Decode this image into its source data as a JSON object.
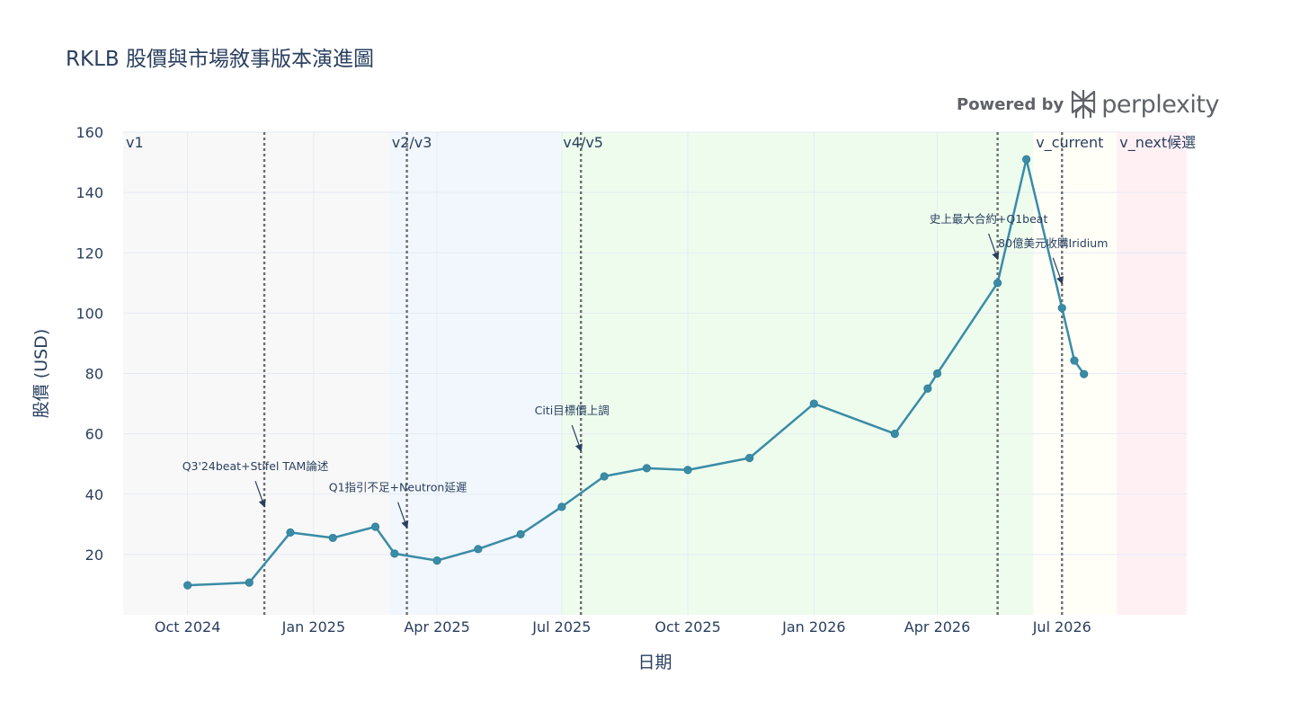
{
  "title": "RKLB 股價與市場敘事版本演進圖",
  "brand": {
    "powered": "Powered by",
    "name": "perplexity",
    "logo_icon": "perplexity-logo-icon"
  },
  "chart_data": {
    "type": "line",
    "title": "RKLB 股價與市場敘事版本演進圖",
    "xlabel": "日期",
    "ylabel": "股價 (USD)",
    "xlim": [
      "2024-08-15",
      "2026-09-30"
    ],
    "ylim": [
      0,
      160
    ],
    "x_tick_labels": [
      {
        "date": "2024-10-01",
        "label": "Oct 2024"
      },
      {
        "date": "2025-01-01",
        "label": "Jan 2025"
      },
      {
        "date": "2025-04-01",
        "label": "Apr 2025"
      },
      {
        "date": "2025-07-01",
        "label": "Jul 2025"
      },
      {
        "date": "2025-10-01",
        "label": "Oct 2025"
      },
      {
        "date": "2026-01-01",
        "label": "Jan 2026"
      },
      {
        "date": "2026-04-01",
        "label": "Apr 2026"
      },
      {
        "date": "2026-07-01",
        "label": "Jul 2026"
      }
    ],
    "y_ticks": [
      20,
      40,
      60,
      80,
      100,
      120,
      140,
      160
    ],
    "grid": true,
    "line_color": "#3a8ca6",
    "series": [
      {
        "points": [
          {
            "x": "2024-10-01",
            "y": 9.8
          },
          {
            "x": "2024-11-15",
            "y": 10.7
          },
          {
            "x": "2024-12-15",
            "y": 27.3
          },
          {
            "x": "2025-01-15",
            "y": 25.5
          },
          {
            "x": "2025-02-15",
            "y": 29.2
          },
          {
            "x": "2025-03-01",
            "y": 20.3
          },
          {
            "x": "2025-04-01",
            "y": 18.0
          },
          {
            "x": "2025-05-01",
            "y": 21.8
          },
          {
            "x": "2025-06-01",
            "y": 26.7
          },
          {
            "x": "2025-07-01",
            "y": 35.8
          },
          {
            "x": "2025-08-01",
            "y": 45.9
          },
          {
            "x": "2025-09-01",
            "y": 48.6
          },
          {
            "x": "2025-10-01",
            "y": 48.0
          },
          {
            "x": "2025-11-15",
            "y": 52.0
          },
          {
            "x": "2026-01-01",
            "y": 70.0
          },
          {
            "x": "2026-03-01",
            "y": 60.0
          },
          {
            "x": "2026-03-25",
            "y": 75.0
          },
          {
            "x": "2026-04-01",
            "y": 80.0
          },
          {
            "x": "2026-05-15",
            "y": 110.0
          },
          {
            "x": "2026-06-05",
            "y": 151.0
          },
          {
            "x": "2026-07-01",
            "y": 101.7
          },
          {
            "x": "2026-07-10",
            "y": 84.3
          },
          {
            "x": "2026-07-17",
            "y": 79.8
          }
        ]
      }
    ],
    "phases": [
      {
        "label": "v1",
        "start": "2024-08-15",
        "end": "2025-02-25",
        "color": "#f8f8f8"
      },
      {
        "label": "v2/v3",
        "start": "2025-02-25",
        "end": "2025-06-30",
        "color": "#f1f7fc"
      },
      {
        "label": "v4/v5",
        "start": "2025-06-30",
        "end": "2026-06-10",
        "color": "#eefcee"
      },
      {
        "label": "v_current",
        "start": "2026-06-10",
        "end": "2026-08-10",
        "color": "#fffff8"
      },
      {
        "label": "v_next候選",
        "start": "2026-08-10",
        "end": "2026-09-30",
        "color": "#fff0f4"
      }
    ],
    "event_lines": [
      "2024-11-26",
      "2025-03-10",
      "2025-07-15",
      "2026-05-15",
      "2026-07-01"
    ],
    "annotations": [
      {
        "text": "Q3'24beat+Stifel TAM論述",
        "x": "2024-11-26",
        "y": 36
      },
      {
        "text": "Q1指引不足+Neutron延遲",
        "x": "2025-03-10",
        "y": 29
      },
      {
        "text": "Citi目標價上調",
        "x": "2025-07-15",
        "y": 54.5
      },
      {
        "text": "史上最大合約+Q1beat",
        "x": "2026-05-15",
        "y": 118
      },
      {
        "text": "80億美元收購Iridium",
        "x": "2026-07-01",
        "y": 110
      }
    ]
  }
}
